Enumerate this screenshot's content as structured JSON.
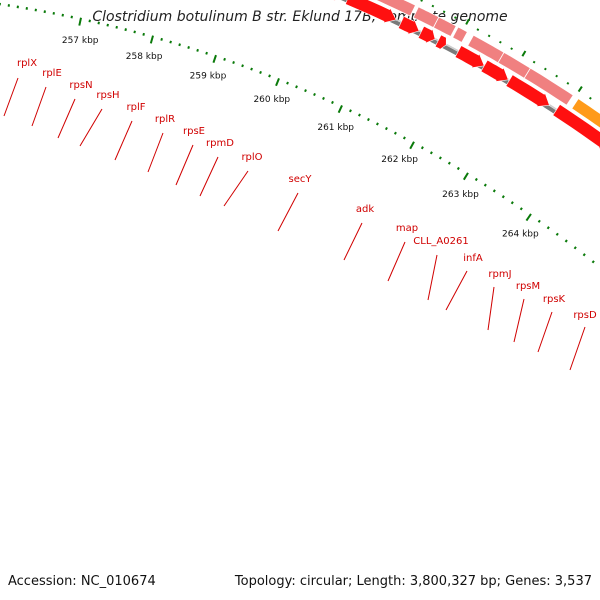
{
  "title": "Clostridium botulinum B str. Eklund 17B, complete genome",
  "accession": "Accession: NC_010674",
  "summary": "Topology: circular; Length: 3,800,327 bp; Genes: 3,537",
  "colors": {
    "gene_label": "#d00000",
    "cds": "#ff1010",
    "gene_bar": "#f08080",
    "secY": "#a4ee3a",
    "adk": "#1cb0e6",
    "rpsD_region": "#ff9a1a",
    "backbone": "#888888",
    "tick": "#0a7a0a"
  },
  "gene_labels": [
    "rplX",
    "rplE",
    "rpsN",
    "rpsH",
    "rplF",
    "rplR",
    "rpsE",
    "rpmD",
    "rplO",
    "secY",
    "adk",
    "map",
    "CLL_A0261",
    "infA",
    "rpmJ",
    "rpsM",
    "rpsK",
    "rpsD"
  ],
  "scale_labels": [
    "257 kbp",
    "258 kbp",
    "259 kbp",
    "260 kbp",
    "261 kbp",
    "262 kbp",
    "263 kbp",
    "264 kbp"
  ]
}
